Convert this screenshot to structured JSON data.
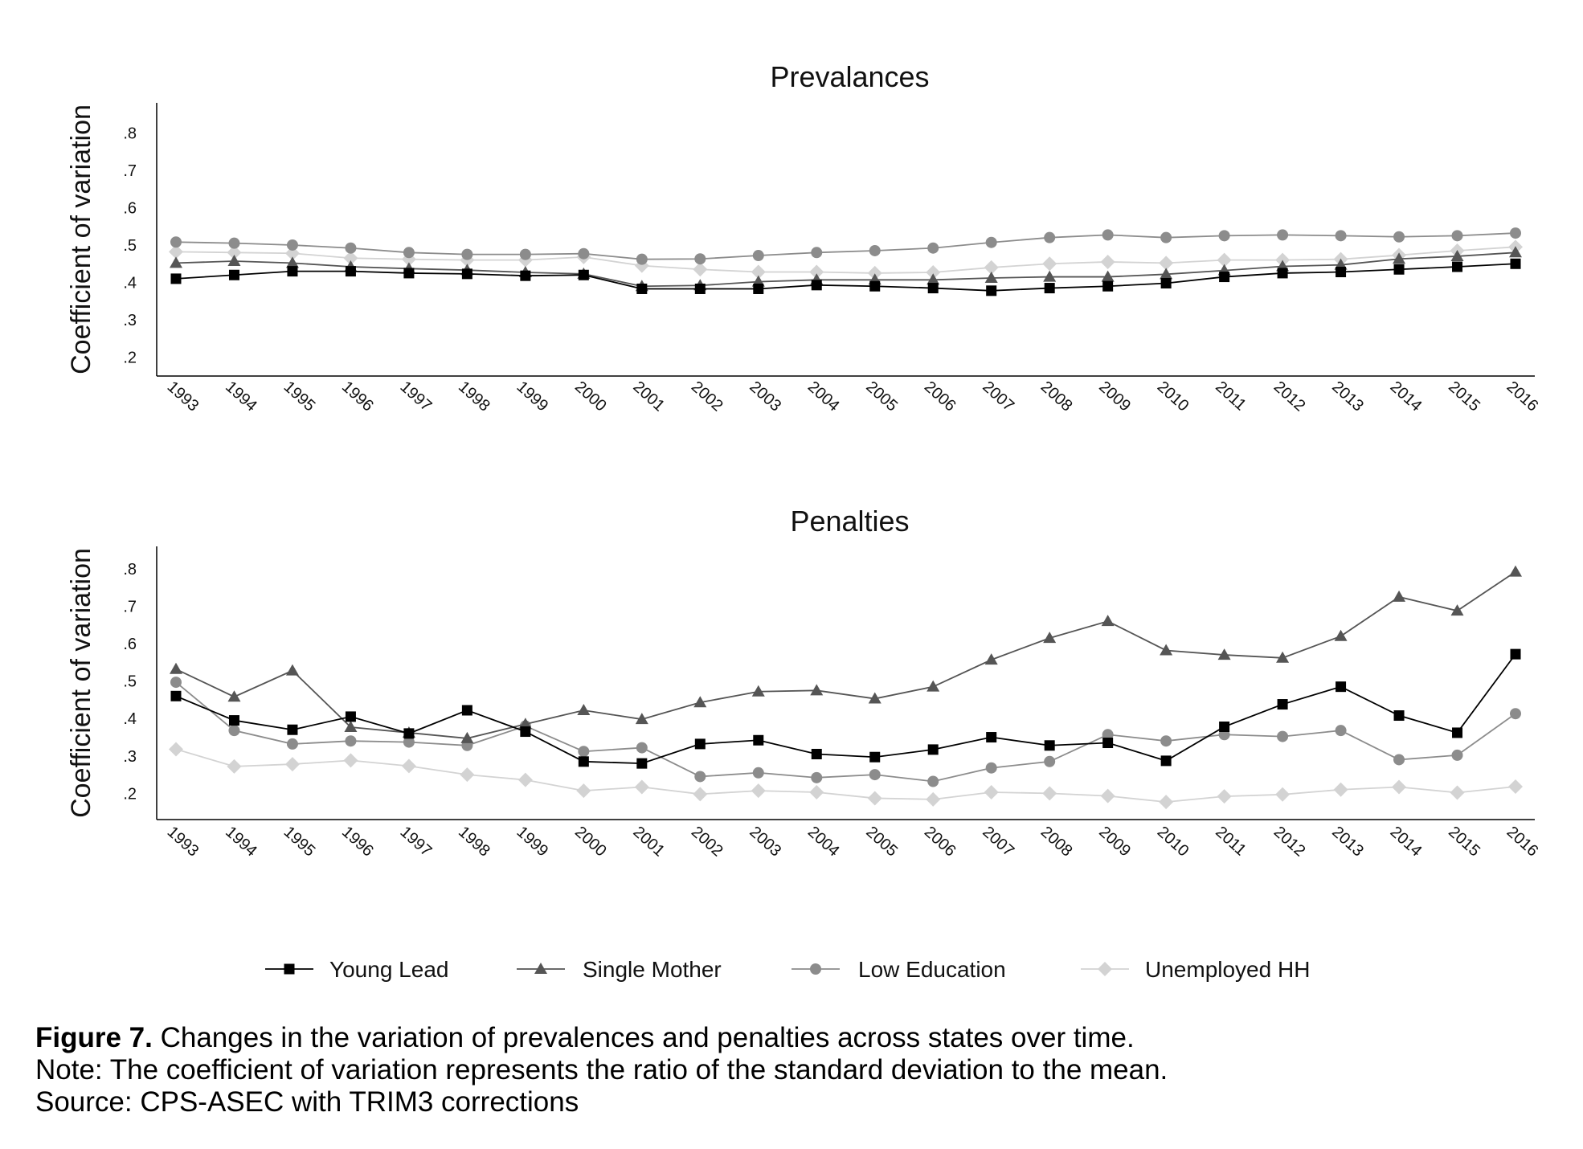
{
  "chart_data": [
    {
      "type": "line",
      "title": "Prevalances",
      "ylabel": "Coefficient of variation",
      "xlabel": "",
      "ylim": [
        0.15,
        0.88
      ],
      "yticks": [
        ".2",
        ".3",
        ".4",
        ".5",
        ".6",
        ".7",
        ".8"
      ],
      "x": [
        "1993",
        "1994",
        "1995",
        "1996",
        "1997",
        "1998",
        "1999",
        "2000",
        "2001",
        "2002",
        "2003",
        "2004",
        "2005",
        "2006",
        "2007",
        "2008",
        "2009",
        "2010",
        "2011",
        "2012",
        "2013",
        "2014",
        "2015",
        "2016"
      ],
      "series": [
        {
          "name": "Young Lead",
          "values": [
            0.41,
            0.42,
            0.43,
            0.43,
            0.425,
            0.423,
            0.418,
            0.42,
            0.383,
            0.383,
            0.383,
            0.393,
            0.39,
            0.385,
            0.378,
            0.385,
            0.39,
            0.398,
            0.415,
            0.425,
            0.428,
            0.435,
            0.442,
            0.45
          ]
        },
        {
          "name": "Single Mother",
          "values": [
            0.452,
            0.457,
            0.452,
            0.442,
            0.437,
            0.433,
            0.427,
            0.423,
            0.39,
            0.392,
            0.402,
            0.407,
            0.407,
            0.407,
            0.412,
            0.415,
            0.415,
            0.422,
            0.432,
            0.443,
            0.447,
            0.463,
            0.47,
            0.48
          ]
        },
        {
          "name": "Low Education",
          "values": [
            0.508,
            0.505,
            0.5,
            0.492,
            0.48,
            0.475,
            0.475,
            0.477,
            0.462,
            0.463,
            0.472,
            0.48,
            0.485,
            0.492,
            0.507,
            0.52,
            0.527,
            0.52,
            0.525,
            0.527,
            0.525,
            0.522,
            0.525,
            0.532
          ]
        },
        {
          "name": "Unemployed HH",
          "values": [
            0.482,
            0.48,
            0.478,
            0.465,
            0.462,
            0.46,
            0.46,
            0.468,
            0.445,
            0.435,
            0.428,
            0.428,
            0.425,
            0.427,
            0.44,
            0.45,
            0.455,
            0.452,
            0.46,
            0.46,
            0.462,
            0.473,
            0.485,
            0.495
          ]
        }
      ]
    },
    {
      "type": "line",
      "title": "Penalties",
      "ylabel": "Coefficient of variation",
      "xlabel": "",
      "ylim": [
        0.13,
        0.86
      ],
      "yticks": [
        ".2",
        ".3",
        ".4",
        ".5",
        ".6",
        ".7",
        ".8"
      ],
      "x": [
        "1993",
        "1994",
        "1995",
        "1996",
        "1997",
        "1998",
        "1999",
        "2000",
        "2001",
        "2002",
        "2003",
        "2004",
        "2005",
        "2006",
        "2007",
        "2008",
        "2009",
        "2010",
        "2011",
        "2012",
        "2013",
        "2014",
        "2015",
        "2016"
      ],
      "series": [
        {
          "name": "Young Lead",
          "values": [
            0.46,
            0.395,
            0.37,
            0.405,
            0.36,
            0.422,
            0.365,
            0.285,
            0.28,
            0.332,
            0.342,
            0.305,
            0.297,
            0.317,
            0.35,
            0.328,
            0.335,
            0.287,
            0.378,
            0.438,
            0.485,
            0.408,
            0.362,
            0.572
          ]
        },
        {
          "name": "Single Mother",
          "values": [
            0.532,
            0.458,
            0.528,
            0.377,
            0.362,
            0.347,
            0.385,
            0.422,
            0.398,
            0.443,
            0.472,
            0.475,
            0.453,
            0.485,
            0.557,
            0.615,
            0.66,
            0.582,
            0.57,
            0.562,
            0.62,
            0.725,
            0.688,
            0.792
          ]
        },
        {
          "name": "Low Education",
          "values": [
            0.497,
            0.368,
            0.332,
            0.34,
            0.337,
            0.328,
            0.38,
            0.312,
            0.322,
            0.245,
            0.255,
            0.242,
            0.25,
            0.232,
            0.268,
            0.285,
            0.357,
            0.34,
            0.357,
            0.352,
            0.368,
            0.29,
            0.302,
            0.413
          ]
        },
        {
          "name": "Unemployed HH",
          "values": [
            0.318,
            0.272,
            0.278,
            0.288,
            0.273,
            0.25,
            0.236,
            0.207,
            0.217,
            0.198,
            0.207,
            0.203,
            0.187,
            0.184,
            0.203,
            0.2,
            0.193,
            0.177,
            0.192,
            0.197,
            0.21,
            0.217,
            0.202,
            0.218
          ]
        }
      ]
    }
  ],
  "legend": {
    "items": [
      {
        "label": "Young Lead",
        "marker": "square",
        "color": "#000000",
        "line": "#000000"
      },
      {
        "label": "Single Mother",
        "marker": "triangle",
        "color": "#555555",
        "line": "#555555"
      },
      {
        "label": "Low Education",
        "marker": "circle",
        "color": "#8c8c8c",
        "line": "#8c8c8c"
      },
      {
        "label": "Unemployed HH",
        "marker": "diamond",
        "color": "#d3d3d3",
        "line": "#d3d3d3"
      }
    ]
  },
  "caption": {
    "figure_label": "Figure 7.",
    "title": " Changes in the variation of prevalences and penalties across states over time.",
    "note": "Note: The coefficient of variation represents the ratio of the standard deviation to the mean.",
    "source": "Source: CPS-ASEC with TRIM3 corrections"
  }
}
